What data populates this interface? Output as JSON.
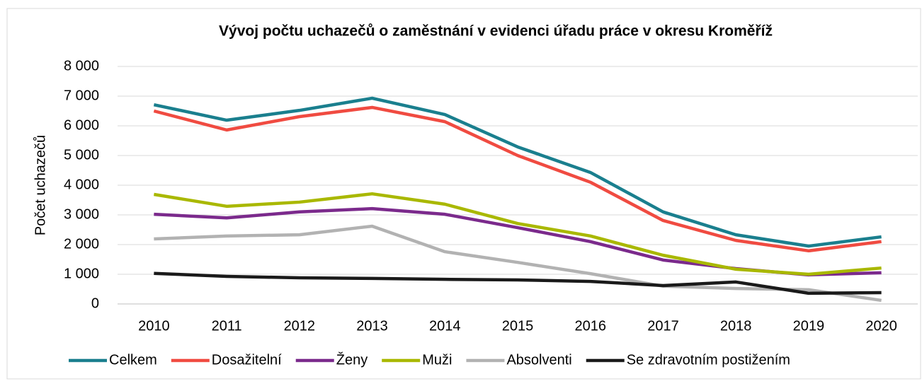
{
  "chart_data": {
    "type": "line",
    "title": "Vývoj počtu uchazečů o zaměstnání v evidenci úřadu práce v okresu Kroměříž",
    "y_label": "Počet uchazečů",
    "categories": [
      "2010",
      "2011",
      "2012",
      "2013",
      "2014",
      "2015",
      "2016",
      "2017",
      "2018",
      "2019",
      "2020"
    ],
    "ylim": [
      0,
      8000
    ],
    "yticks": [
      0,
      {
        "value": 1000,
        "label": "1 000"
      },
      {
        "value": 2000,
        "label": "2 000"
      },
      {
        "value": 3000,
        "label": "3 000"
      },
      {
        "value": 4000,
        "label": "4 000"
      },
      {
        "value": 5000,
        "label": "5 000"
      },
      {
        "value": 6000,
        "label": "6 000"
      },
      {
        "value": 7000,
        "label": "7 000"
      },
      {
        "value": 8000,
        "label": "8 000"
      }
    ],
    "grid": true,
    "legend": "bottom",
    "series": [
      {
        "name": "Celkem",
        "color": "#1a7f8e",
        "values": [
          6710,
          6190,
          6520,
          6930,
          6380,
          5290,
          4430,
          3100,
          2330,
          1950,
          2260
        ]
      },
      {
        "name": "Dosažitelní",
        "color": "#f04b41",
        "values": [
          6500,
          5860,
          6310,
          6620,
          6140,
          5000,
          4100,
          2810,
          2140,
          1790,
          2100
        ]
      },
      {
        "name": "Ženy",
        "color": "#7b2a8c",
        "values": [
          3020,
          2900,
          3100,
          3210,
          3020,
          2570,
          2100,
          1480,
          1190,
          980,
          1050
        ]
      },
      {
        "name": "Muži",
        "color": "#a9b800",
        "values": [
          3690,
          3290,
          3430,
          3710,
          3360,
          2710,
          2290,
          1640,
          1170,
          1000,
          1210
        ]
      },
      {
        "name": "Absolventi",
        "color": "#b2b2b2",
        "values": [
          2190,
          2290,
          2330,
          2620,
          1760,
          1400,
          1020,
          600,
          520,
          480,
          120
        ]
      },
      {
        "name": "Se zdravotním postižením",
        "color": "#1a1a1a",
        "values": [
          1030,
          930,
          880,
          860,
          830,
          810,
          760,
          620,
          740,
          360,
          380
        ]
      }
    ]
  }
}
